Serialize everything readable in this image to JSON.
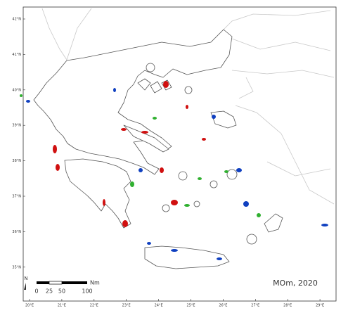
{
  "map": {
    "lat_labels": [
      "42°N",
      "41°N",
      "40°N",
      "39°N",
      "38°N",
      "37°N",
      "36°N",
      "35°N"
    ],
    "lon_labels": [
      "20°E",
      "21°E",
      "22°E",
      "23°E",
      "24°E",
      "25°E",
      "26°E",
      "27°E",
      "28°E",
      "29°E"
    ],
    "north": "N",
    "scale_labels": [
      "0",
      "25",
      "50",
      "100"
    ],
    "scale_unit": "Nm",
    "credit": "MOm, 2020"
  }
}
